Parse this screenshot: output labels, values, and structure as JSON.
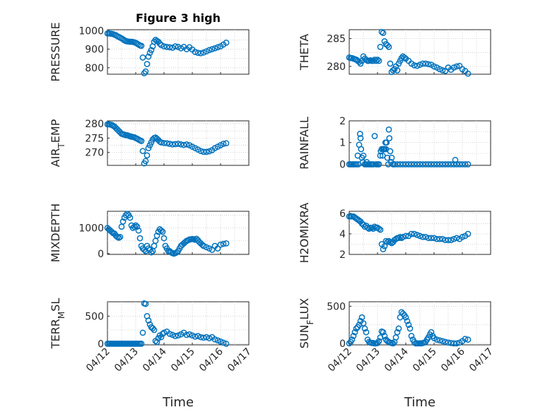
{
  "figure": {
    "title": "Figure 3 high",
    "xlabel": "Time",
    "marker_color": "#0072BD"
  },
  "chart_data": [
    {
      "type": "scatter",
      "ylabel": "PRESSURE",
      "yticks": [
        "800",
        "900",
        "1000"
      ],
      "ylim": [
        765,
        1005
      ],
      "xticks": [
        "04/12",
        "04/13",
        "04/14",
        "04/15",
        "04/16",
        "04/17"
      ],
      "xlim": [
        0,
        5
      ],
      "grid": true,
      "x": [
        0.0,
        0.05,
        0.1,
        0.15,
        0.2,
        0.25,
        0.3,
        0.35,
        0.4,
        0.45,
        0.5,
        0.55,
        0.6,
        0.65,
        0.7,
        0.75,
        0.8,
        0.85,
        0.9,
        0.95,
        1.0,
        1.05,
        1.1,
        1.15,
        1.2,
        1.25,
        1.3,
        1.35,
        1.4,
        1.45,
        1.5,
        1.55,
        1.6,
        1.65,
        1.7,
        1.75,
        1.8,
        1.85,
        1.9,
        2.0,
        2.1,
        2.2,
        2.3,
        2.4,
        2.5,
        2.6,
        2.7,
        2.8,
        2.9,
        3.0,
        3.1,
        3.2,
        3.3,
        3.4,
        3.5,
        3.6,
        3.7,
        3.8,
        3.9,
        4.0,
        4.1,
        4.2
      ],
      "y": [
        985,
        985,
        984,
        983,
        981,
        978,
        975,
        970,
        966,
        962,
        958,
        953,
        948,
        944,
        942,
        941,
        940,
        940,
        939,
        937,
        934,
        930,
        925,
        920,
        918,
        855,
        770,
        780,
        820,
        860,
        880,
        895,
        915,
        940,
        950,
        945,
        940,
        930,
        922,
        915,
        912,
        910,
        908,
        915,
        912,
        905,
        912,
        900,
        910,
        898,
        885,
        880,
        878,
        882,
        888,
        895,
        900,
        905,
        910,
        915,
        925,
        935
      ]
    },
    {
      "type": "scatter",
      "ylabel": "THETA",
      "yticks": [
        "280",
        "285"
      ],
      "ylim": [
        278.6,
        286.6
      ],
      "xticks": [
        "04/12",
        "04/13",
        "04/14",
        "04/15",
        "04/16",
        "04/17"
      ],
      "xlim": [
        0,
        5
      ],
      "grid": true,
      "x": [
        0.0,
        0.05,
        0.1,
        0.15,
        0.2,
        0.25,
        0.3,
        0.35,
        0.4,
        0.45,
        0.5,
        0.55,
        0.6,
        0.65,
        0.7,
        0.75,
        0.8,
        0.85,
        0.9,
        0.95,
        1.0,
        1.05,
        1.1,
        1.15,
        1.2,
        1.25,
        1.3,
        1.35,
        1.4,
        1.45,
        1.5,
        1.55,
        1.6,
        1.65,
        1.7,
        1.75,
        1.8,
        1.85,
        1.9,
        1.95,
        2.0,
        2.1,
        2.2,
        2.3,
        2.4,
        2.5,
        2.6,
        2.7,
        2.8,
        2.9,
        3.0,
        3.1,
        3.2,
        3.3,
        3.4,
        3.5,
        3.6,
        3.7,
        3.8,
        3.9,
        4.0,
        4.1,
        4.2
      ],
      "y": [
        281.6,
        281.5,
        281.5,
        281.4,
        281.3,
        281.2,
        281.0,
        280.8,
        280.5,
        281.0,
        281.8,
        281.4,
        281.2,
        281.0,
        281.0,
        281.1,
        281.0,
        281.0,
        281.2,
        281.0,
        281.2,
        281.0,
        283.5,
        286.2,
        286.0,
        284.5,
        284.0,
        283.8,
        283.5,
        280.5,
        279.0,
        279.3,
        279.5,
        280.0,
        279.3,
        280.5,
        281.0,
        281.5,
        281.8,
        281.6,
        281.4,
        281.0,
        280.5,
        280.2,
        280.1,
        280.3,
        280.5,
        280.5,
        280.4,
        280.3,
        280.0,
        279.8,
        279.5,
        279.3,
        279.2,
        279.8,
        279.4,
        279.8,
        280.0,
        280.1,
        279.5,
        279.2,
        278.7
      ]
    },
    {
      "type": "scatter",
      "ylabel": "AIR_TEMP",
      "ylabel_main": "AIR",
      "ylabel_sub": "T",
      "ylabel_rest": "EMP",
      "yticks": [
        "270",
        "275",
        "280"
      ],
      "ylim": [
        265.5,
        281
      ],
      "xticks": [
        "04/12",
        "04/13",
        "04/14",
        "04/15",
        "04/16",
        "04/17"
      ],
      "xlim": [
        0,
        5
      ],
      "grid": true,
      "x": [
        0.0,
        0.05,
        0.1,
        0.15,
        0.2,
        0.25,
        0.3,
        0.35,
        0.4,
        0.45,
        0.5,
        0.55,
        0.6,
        0.65,
        0.7,
        0.75,
        0.8,
        0.85,
        0.9,
        0.95,
        1.0,
        1.05,
        1.1,
        1.15,
        1.2,
        1.25,
        1.3,
        1.35,
        1.4,
        1.45,
        1.5,
        1.55,
        1.6,
        1.65,
        1.7,
        1.75,
        1.8,
        1.85,
        1.9,
        2.0,
        2.1,
        2.2,
        2.3,
        2.4,
        2.5,
        2.6,
        2.7,
        2.8,
        2.9,
        3.0,
        3.1,
        3.2,
        3.3,
        3.4,
        3.5,
        3.6,
        3.7,
        3.8,
        3.9,
        4.0,
        4.1,
        4.2
      ],
      "y": [
        279.8,
        279.8,
        279.7,
        279.6,
        279.3,
        279.0,
        278.5,
        278.0,
        277.5,
        277.0,
        276.5,
        276.3,
        276.2,
        276.0,
        276.0,
        275.8,
        275.6,
        275.5,
        275.4,
        275.3,
        275.0,
        274.8,
        274.5,
        274.2,
        274.0,
        270.5,
        266.2,
        267.0,
        269.0,
        271.5,
        272.5,
        273.5,
        274.5,
        275.0,
        275.2,
        274.8,
        274.3,
        273.8,
        273.5,
        273.3,
        273.2,
        273.0,
        272.8,
        272.9,
        273.0,
        272.8,
        272.6,
        272.8,
        272.5,
        272.0,
        271.5,
        271.0,
        270.5,
        270.2,
        270.2,
        270.4,
        270.8,
        271.5,
        272.0,
        272.5,
        273.0,
        273.2
      ]
    },
    {
      "type": "scatter",
      "ylabel": "RAINFALL",
      "yticks": [
        "0",
        "1",
        "2"
      ],
      "ylim": [
        -0.05,
        2
      ],
      "xticks": [
        "04/12",
        "04/13",
        "04/14",
        "04/15",
        "04/16",
        "04/17"
      ],
      "xlim": [
        0,
        5
      ],
      "grid": true,
      "x": [
        0.0,
        0.05,
        0.1,
        0.15,
        0.2,
        0.25,
        0.3,
        0.32,
        0.35,
        0.38,
        0.4,
        0.42,
        0.45,
        0.48,
        0.5,
        0.55,
        0.6,
        0.62,
        0.65,
        0.7,
        0.75,
        0.8,
        0.85,
        0.9,
        0.95,
        1.0,
        1.05,
        1.1,
        1.12,
        1.15,
        1.18,
        1.2,
        1.22,
        1.25,
        1.28,
        1.3,
        1.32,
        1.35,
        1.38,
        1.4,
        1.42,
        1.45,
        1.48,
        1.5,
        1.55,
        1.6,
        1.7,
        1.8,
        1.9,
        2.0,
        2.1,
        2.2,
        2.3,
        2.4,
        2.5,
        2.6,
        2.7,
        2.8,
        2.9,
        3.0,
        3.1,
        3.2,
        3.3,
        3.4,
        3.5,
        3.6,
        3.7,
        3.75,
        3.8,
        3.9,
        4.0,
        4.1,
        4.2
      ],
      "y": [
        0,
        0,
        0,
        0,
        0,
        0,
        0.4,
        0,
        0.9,
        1.4,
        1.2,
        0.7,
        0.3,
        0.1,
        0.4,
        0,
        0,
        0.1,
        0,
        0,
        0,
        0,
        0,
        1.3,
        0,
        0,
        0,
        0.4,
        0.6,
        0.7,
        0.4,
        0.7,
        0.7,
        0.7,
        1.0,
        0.7,
        1.0,
        0.3,
        0,
        1.6,
        1.2,
        0.6,
        0.1,
        0.3,
        0,
        0,
        0,
        0,
        0,
        0,
        0,
        0,
        0,
        0,
        0,
        0,
        0,
        0,
        0,
        0,
        0,
        0,
        0,
        0,
        0,
        0,
        0,
        0.2,
        0,
        0,
        0,
        0,
        0
      ]
    },
    {
      "type": "scatter",
      "ylabel": "MIXDEPTH",
      "yticks": [
        "0",
        "1000"
      ],
      "ylim": [
        -30,
        1650
      ],
      "xticks": [
        "04/12",
        "04/13",
        "04/14",
        "04/15",
        "04/16",
        "04/17"
      ],
      "xlim": [
        0,
        5
      ],
      "grid": true,
      "x": [
        0.0,
        0.05,
        0.1,
        0.15,
        0.2,
        0.25,
        0.3,
        0.35,
        0.4,
        0.45,
        0.5,
        0.55,
        0.6,
        0.65,
        0.7,
        0.75,
        0.8,
        0.85,
        0.9,
        0.95,
        1.0,
        1.05,
        1.1,
        1.15,
        1.2,
        1.25,
        1.3,
        1.35,
        1.4,
        1.45,
        1.5,
        1.55,
        1.6,
        1.65,
        1.7,
        1.75,
        1.8,
        1.85,
        1.9,
        1.95,
        2.0,
        2.05,
        2.1,
        2.15,
        2.2,
        2.25,
        2.3,
        2.35,
        2.4,
        2.45,
        2.5,
        2.55,
        2.6,
        2.65,
        2.7,
        2.75,
        2.8,
        2.85,
        2.9,
        2.95,
        3.0,
        3.05,
        3.1,
        3.15,
        3.2,
        3.25,
        3.3,
        3.35,
        3.4,
        3.5,
        3.6,
        3.7,
        3.8,
        3.9,
        4.0,
        4.1,
        4.2
      ],
      "y": [
        1000,
        950,
        900,
        850,
        800,
        780,
        700,
        650,
        620,
        650,
        1050,
        1250,
        1400,
        1500,
        1550,
        1500,
        1400,
        1100,
        1000,
        1050,
        1100,
        1050,
        900,
        600,
        300,
        200,
        150,
        100,
        300,
        200,
        150,
        50,
        100,
        300,
        500,
        700,
        850,
        950,
        900,
        850,
        600,
        300,
        200,
        100,
        100,
        50,
        20,
        0,
        20,
        50,
        100,
        200,
        300,
        350,
        400,
        450,
        500,
        520,
        550,
        560,
        570,
        560,
        540,
        580,
        520,
        450,
        400,
        350,
        300,
        250,
        200,
        150,
        300,
        200,
        350,
        380,
        400
      ]
    },
    {
      "type": "scatter",
      "ylabel": "H2OMIXRA",
      "yticks": [
        "2",
        "4",
        "6"
      ],
      "ylim": [
        2,
        6.2
      ],
      "xticks": [
        "04/12",
        "04/13",
        "04/14",
        "04/15",
        "04/16",
        "04/17"
      ],
      "xlim": [
        0,
        5
      ],
      "grid": true,
      "x": [
        0.0,
        0.05,
        0.1,
        0.15,
        0.2,
        0.25,
        0.3,
        0.35,
        0.4,
        0.45,
        0.5,
        0.55,
        0.6,
        0.65,
        0.7,
        0.75,
        0.8,
        0.85,
        0.9,
        0.95,
        1.0,
        1.05,
        1.1,
        1.15,
        1.2,
        1.25,
        1.3,
        1.35,
        1.4,
        1.45,
        1.5,
        1.55,
        1.6,
        1.65,
        1.7,
        1.75,
        1.8,
        1.85,
        1.9,
        2.0,
        2.1,
        2.2,
        2.3,
        2.4,
        2.5,
        2.6,
        2.7,
        2.8,
        2.9,
        3.0,
        3.1,
        3.2,
        3.3,
        3.4,
        3.5,
        3.6,
        3.7,
        3.8,
        3.9,
        4.0,
        4.1,
        4.2
      ],
      "y": [
        5.7,
        5.7,
        5.7,
        5.7,
        5.6,
        5.5,
        5.4,
        5.3,
        5.2,
        5.0,
        4.9,
        4.7,
        4.8,
        4.6,
        4.5,
        4.6,
        4.6,
        4.5,
        4.7,
        4.6,
        4.6,
        4.5,
        4.4,
        3.0,
        2.5,
        2.8,
        3.3,
        3.2,
        3.3,
        3.2,
        3.1,
        3.2,
        3.4,
        3.5,
        3.6,
        3.6,
        3.7,
        3.6,
        3.7,
        3.8,
        3.8,
        4.0,
        4.0,
        3.9,
        3.8,
        3.7,
        3.7,
        3.6,
        3.6,
        3.6,
        3.5,
        3.5,
        3.5,
        3.4,
        3.4,
        3.4,
        3.5,
        3.6,
        3.5,
        3.7,
        3.8,
        4.0
      ]
    },
    {
      "type": "scatter",
      "ylabel": "TERR_MSL",
      "ylabel_main": "TERR",
      "ylabel_sub": "M",
      "ylabel_rest": "SL",
      "yticks": [
        "0",
        "500"
      ],
      "ylim": [
        -20,
        760
      ],
      "xticks": [
        "04/12",
        "04/13",
        "04/14",
        "04/15",
        "04/16",
        "04/17"
      ],
      "xlim": [
        0,
        5
      ],
      "grid": true,
      "x": [
        0.0,
        0.05,
        0.1,
        0.15,
        0.2,
        0.25,
        0.3,
        0.35,
        0.4,
        0.45,
        0.5,
        0.55,
        0.6,
        0.65,
        0.7,
        0.75,
        0.8,
        0.85,
        0.9,
        0.95,
        1.0,
        1.05,
        1.1,
        1.15,
        1.2,
        1.25,
        1.3,
        1.35,
        1.4,
        1.45,
        1.5,
        1.55,
        1.6,
        1.65,
        1.7,
        1.75,
        1.8,
        1.85,
        1.9,
        1.95,
        2.0,
        2.1,
        2.2,
        2.3,
        2.4,
        2.5,
        2.6,
        2.7,
        2.8,
        2.9,
        3.0,
        3.1,
        3.2,
        3.3,
        3.4,
        3.5,
        3.6,
        3.7,
        3.8,
        3.9,
        4.0,
        4.1,
        4.2
      ],
      "y": [
        0,
        0,
        0,
        0,
        0,
        0,
        0,
        0,
        0,
        0,
        0,
        0,
        0,
        0,
        0,
        0,
        0,
        0,
        0,
        0,
        0,
        0,
        0,
        0,
        0,
        200,
        730,
        720,
        500,
        420,
        350,
        300,
        280,
        250,
        50,
        30,
        100,
        150,
        120,
        180,
        200,
        220,
        180,
        160,
        140,
        150,
        170,
        200,
        160,
        170,
        150,
        130,
        140,
        120,
        110,
        120,
        100,
        120,
        80,
        60,
        40,
        20,
        0
      ]
    },
    {
      "type": "scatter",
      "ylabel": "SUN_FLUX",
      "ylabel_main": "SUN",
      "ylabel_sub": "F",
      "ylabel_rest": "LUX",
      "yticks": [
        "0",
        "500"
      ],
      "ylim": [
        -20,
        560
      ],
      "xticks": [
        "04/12",
        "04/13",
        "04/14",
        "04/15",
        "04/16",
        "04/17"
      ],
      "xlim": [
        0,
        5
      ],
      "grid": true,
      "x": [
        0.0,
        0.05,
        0.1,
        0.15,
        0.2,
        0.25,
        0.3,
        0.35,
        0.4,
        0.45,
        0.5,
        0.55,
        0.6,
        0.65,
        0.7,
        0.75,
        0.8,
        0.85,
        0.9,
        0.95,
        1.0,
        1.05,
        1.1,
        1.15,
        1.2,
        1.25,
        1.3,
        1.35,
        1.4,
        1.45,
        1.5,
        1.55,
        1.6,
        1.65,
        1.7,
        1.75,
        1.8,
        1.85,
        1.9,
        1.95,
        2.0,
        2.05,
        2.1,
        2.15,
        2.2,
        2.25,
        2.3,
        2.35,
        2.4,
        2.45,
        2.5,
        2.55,
        2.6,
        2.65,
        2.7,
        2.75,
        2.8,
        2.85,
        2.9,
        2.95,
        3.0,
        3.1,
        3.2,
        3.3,
        3.4,
        3.5,
        3.6,
        3.7,
        3.8,
        3.9,
        4.0,
        4.1,
        4.2
      ],
      "y": [
        0,
        20,
        50,
        100,
        150,
        200,
        220,
        250,
        300,
        350,
        270,
        200,
        150,
        50,
        20,
        10,
        5,
        5,
        0,
        0,
        5,
        30,
        80,
        160,
        150,
        100,
        50,
        30,
        20,
        10,
        5,
        0,
        20,
        80,
        150,
        200,
        350,
        420,
        400,
        380,
        350,
        300,
        250,
        200,
        100,
        50,
        20,
        0,
        0,
        0,
        0,
        0,
        5,
        10,
        20,
        50,
        80,
        120,
        150,
        100,
        70,
        50,
        40,
        30,
        20,
        10,
        5,
        0,
        0,
        10,
        30,
        60,
        50
      ]
    }
  ]
}
